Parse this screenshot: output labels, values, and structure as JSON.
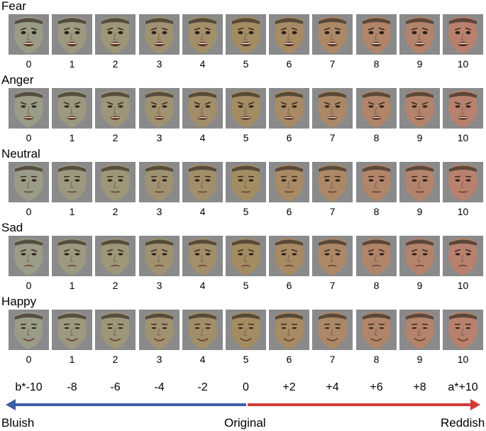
{
  "rows": [
    {
      "label": "Fear",
      "expression": "fear"
    },
    {
      "label": "Anger",
      "expression": "anger"
    },
    {
      "label": "Neutral",
      "expression": "neutral"
    },
    {
      "label": "Sad",
      "expression": "sad"
    },
    {
      "label": "Happy",
      "expression": "happy"
    }
  ],
  "indices": [
    "0",
    "1",
    "2",
    "3",
    "4",
    "5",
    "6",
    "7",
    "8",
    "9",
    "10"
  ],
  "scale": [
    "b*-10",
    "-8",
    "-6",
    "-4",
    "-2",
    "0",
    "+2",
    "+4",
    "+6",
    "+8",
    "a*+10"
  ],
  "labels": {
    "left": "Bluish",
    "center": "Original",
    "right": "Reddish"
  },
  "colors": {
    "blue_arrow": "#3f5ea8",
    "red_arrow": "#d23a3a",
    "tile_background": "#8a8a8a",
    "skin_blue_end": "#9a9c88",
    "skin_original": "#a48c62",
    "skin_red_end": "#b8816e"
  }
}
